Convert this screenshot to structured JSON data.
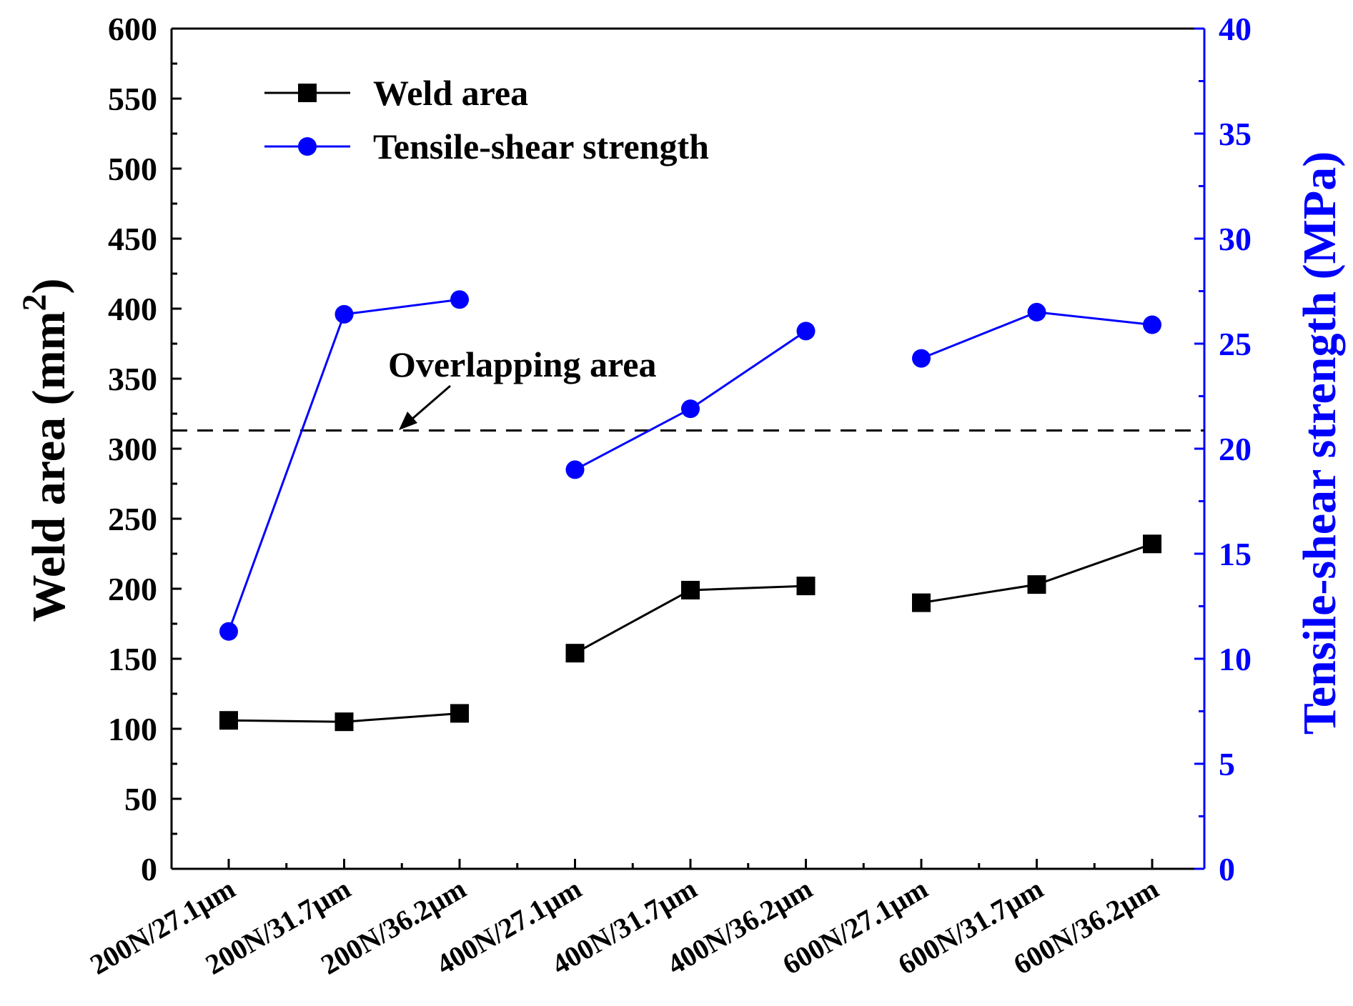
{
  "chart_data": {
    "type": "line",
    "categories": [
      "200N/27.1μm",
      "200N/31.7μm",
      "200N/36.2μm",
      "400N/27.1μm",
      "400N/31.7μm",
      "400N/36.2μm",
      "600N/27.1μm",
      "600N/31.7μm",
      "600N/36.2μm"
    ],
    "groups": [
      [
        0,
        1,
        2
      ],
      [
        3,
        4,
        5
      ],
      [
        6,
        7,
        8
      ]
    ],
    "series": [
      {
        "name": "Weld area",
        "axis": "left",
        "marker": "square",
        "color": "#000000",
        "values": [
          106,
          105,
          111,
          154,
          199,
          202,
          190,
          203,
          232
        ]
      },
      {
        "name": "Tensile-shear strength",
        "axis": "right",
        "marker": "circle",
        "color": "#0000ff",
        "values": [
          11.3,
          26.4,
          27.1,
          19.0,
          21.9,
          25.6,
          24.3,
          26.5,
          25.9
        ]
      }
    ],
    "ylabel": "Weld area  (mm²)",
    "ylabel_main": "Weld area  (mm",
    "ylabel_sup": "2",
    "ylabel_close": ")",
    "y2label": "Tensile-shear strength (MPa)",
    "ylim": [
      0,
      600
    ],
    "y2lim": [
      0,
      40
    ],
    "yticks": [
      0,
      50,
      100,
      150,
      200,
      250,
      300,
      350,
      400,
      450,
      500,
      550,
      600
    ],
    "y2ticks": [
      0,
      5,
      10,
      15,
      20,
      25,
      30,
      35,
      40
    ],
    "reference_line": {
      "value": 313,
      "style": "dashed",
      "label": "Overlapping area"
    },
    "legend": {
      "placement": "top-left",
      "entries": [
        "Weld area",
        "Tensile-shear strength"
      ]
    },
    "colors": {
      "left_axis": "#000000",
      "right_axis": "#0000ff"
    }
  }
}
